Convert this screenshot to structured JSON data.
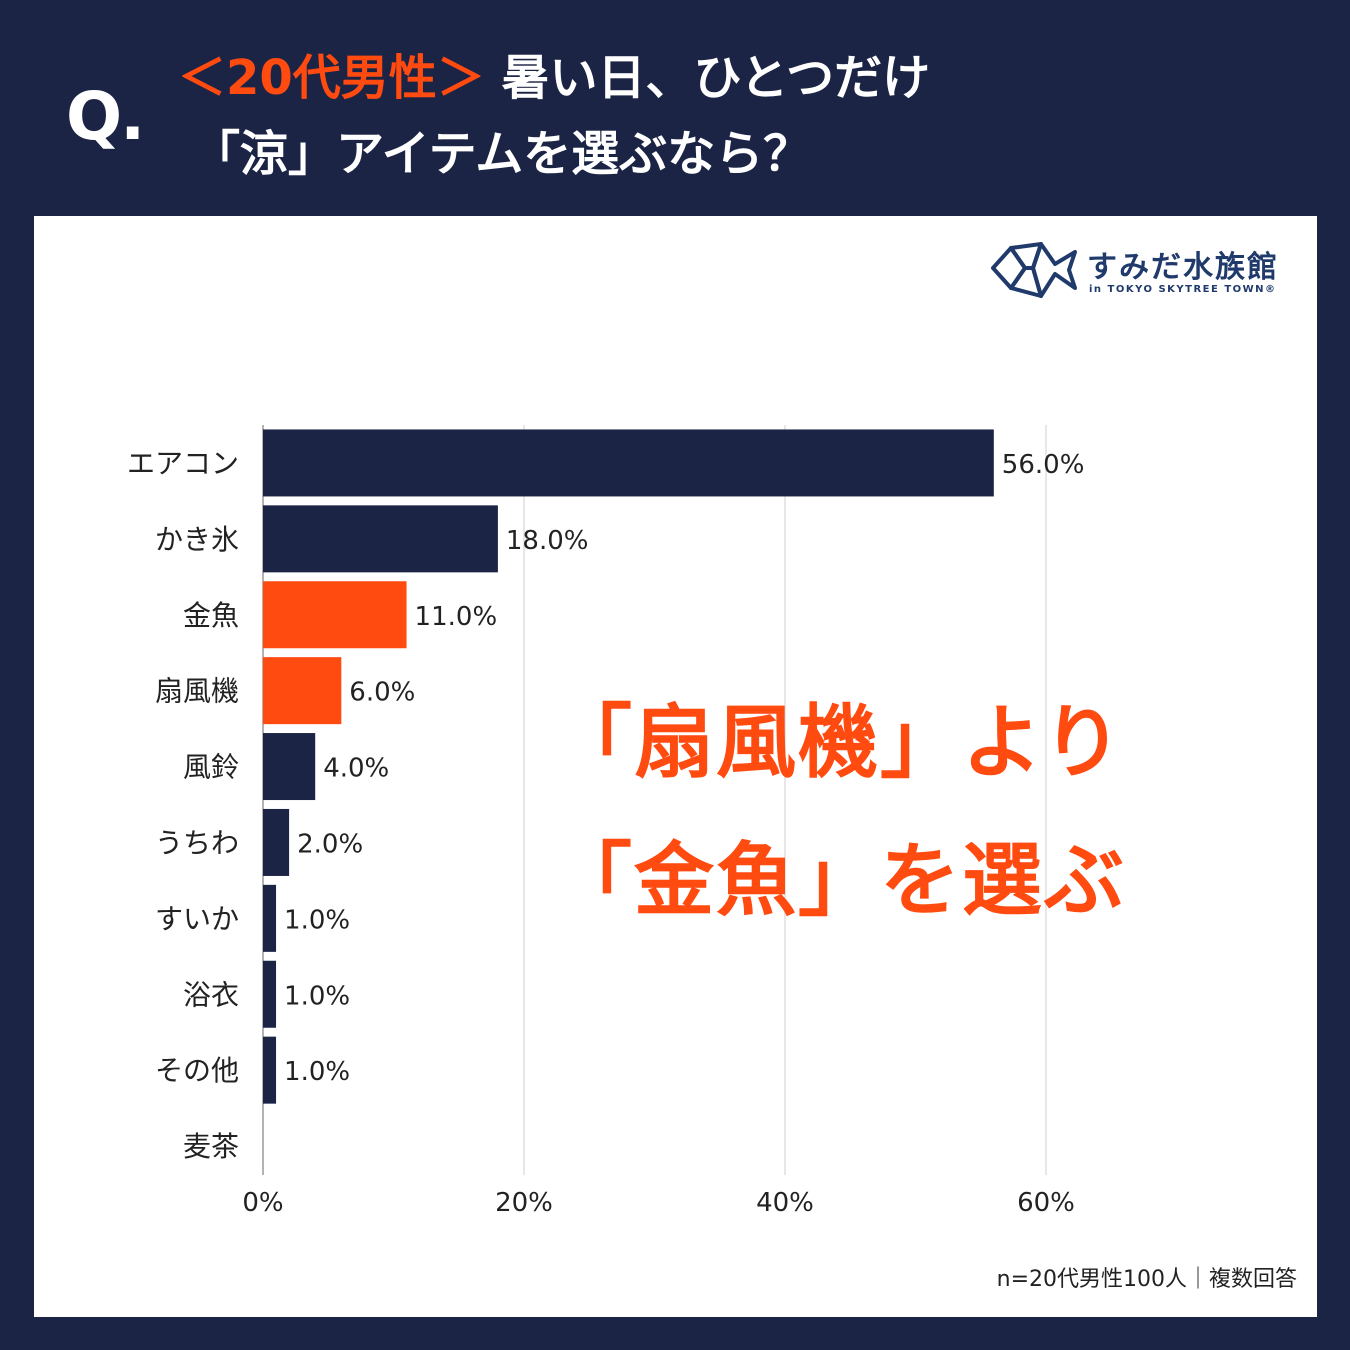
{
  "header": {
    "q_mark": "Q.",
    "title_accent": "＜20代男性＞",
    "title_line1_rest": " 暑い日、ひとつだけ",
    "title_line2": "「涼」アイテムを選ぶなら？"
  },
  "logo": {
    "name": "すみだ水族館",
    "sub": "in TOKYO SKYTREE TOWN®"
  },
  "overlay": {
    "line1": "「扇風機」より",
    "line2": "「金魚」を選ぶ"
  },
  "footnote": "n=20代男性100人｜複数回答",
  "colors": {
    "background": "#1c2445",
    "bar_default": "#1c2445",
    "bar_highlight": "#ff4a10",
    "accent_text": "#ff4a10"
  },
  "chart_data": {
    "type": "bar",
    "orientation": "horizontal",
    "categories": [
      "エアコン",
      "かき氷",
      "金魚",
      "扇風機",
      "風鈴",
      "うちわ",
      "すいか",
      "浴衣",
      "その他",
      "麦茶"
    ],
    "values": [
      56.0,
      18.0,
      11.0,
      6.0,
      4.0,
      2.0,
      1.0,
      1.0,
      1.0,
      0.0
    ],
    "value_labels": [
      "56.0%",
      "18.0%",
      "11.0%",
      "6.0%",
      "4.0%",
      "2.0%",
      "1.0%",
      "1.0%",
      "1.0%",
      ""
    ],
    "highlighted": [
      "金魚",
      "扇風機"
    ],
    "xticks": [
      0,
      20,
      40,
      60
    ],
    "xtick_labels": [
      "0%",
      "20%",
      "40%",
      "60%"
    ],
    "xlim": [
      0,
      60
    ],
    "grid": true
  }
}
